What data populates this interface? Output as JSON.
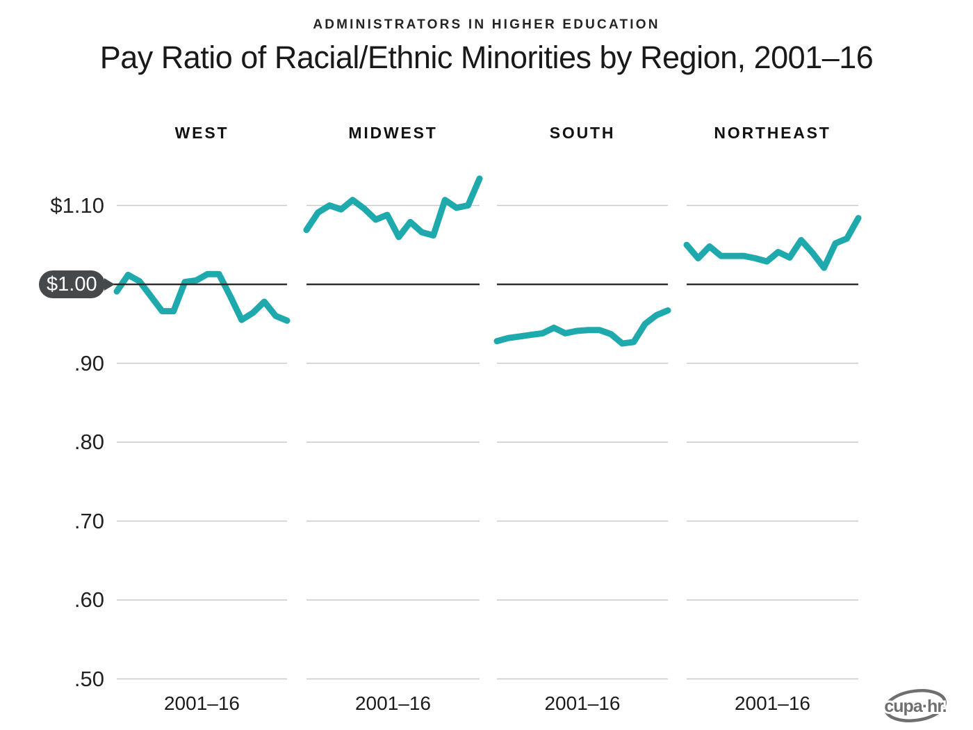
{
  "kicker": "ADMINISTRATORS IN HIGHER EDUCATION",
  "title": "Pay Ratio of Racial/Ethnic Minorities by Region, 2001–16",
  "logo": {
    "text": "cupa·hr."
  },
  "colors": {
    "accent_teal": "#1ea9ad",
    "gridline": "#c9c9c9",
    "baseline": "#2d2d2d",
    "callout_bg": "#45494c",
    "logo_gray": "#6f6f6f",
    "text_dark": "#191919"
  },
  "chart_data": {
    "type": "line",
    "layout": "small-multiples",
    "x": [
      2001,
      2002,
      2003,
      2004,
      2005,
      2006,
      2007,
      2008,
      2009,
      2010,
      2011,
      2012,
      2013,
      2014,
      2015,
      2016
    ],
    "x_axis_label_per_panel": "2001–16",
    "ylim": [
      0.5,
      1.15
    ],
    "grid": "horizontal",
    "legend": "none",
    "line_color": "#1ea9ad",
    "baseline_value": 1.0,
    "yticks": [
      {
        "value": 1.1,
        "label": "$1.10"
      },
      {
        "value": 1.0,
        "label": "$1.00",
        "callout": true
      },
      {
        "value": 0.9,
        "label": ".90"
      },
      {
        "value": 0.8,
        "label": ".80"
      },
      {
        "value": 0.7,
        "label": ".70"
      },
      {
        "value": 0.6,
        "label": ".60"
      },
      {
        "value": 0.5,
        "label": ".50"
      }
    ],
    "series": [
      {
        "name": "WEST",
        "values": [
          0.991,
          1.012,
          1.004,
          0.985,
          0.966,
          0.966,
          1.003,
          1.005,
          1.013,
          1.013,
          0.985,
          0.955,
          0.964,
          0.978,
          0.96,
          0.954
        ]
      },
      {
        "name": "MIDWEST",
        "values": [
          1.069,
          1.091,
          1.1,
          1.095,
          1.107,
          1.096,
          1.082,
          1.088,
          1.06,
          1.079,
          1.066,
          1.062,
          1.107,
          1.097,
          1.1,
          1.134
        ]
      },
      {
        "name": "SOUTH",
        "values": [
          0.928,
          0.932,
          0.934,
          0.936,
          0.938,
          0.945,
          0.938,
          0.941,
          0.942,
          0.942,
          0.937,
          0.925,
          0.927,
          0.95,
          0.961,
          0.967
        ]
      },
      {
        "name": "NORTHEAST",
        "values": [
          1.05,
          1.033,
          1.048,
          1.036,
          1.036,
          1.036,
          1.033,
          1.029,
          1.041,
          1.034,
          1.056,
          1.04,
          1.021,
          1.052,
          1.058,
          1.084
        ]
      }
    ]
  }
}
